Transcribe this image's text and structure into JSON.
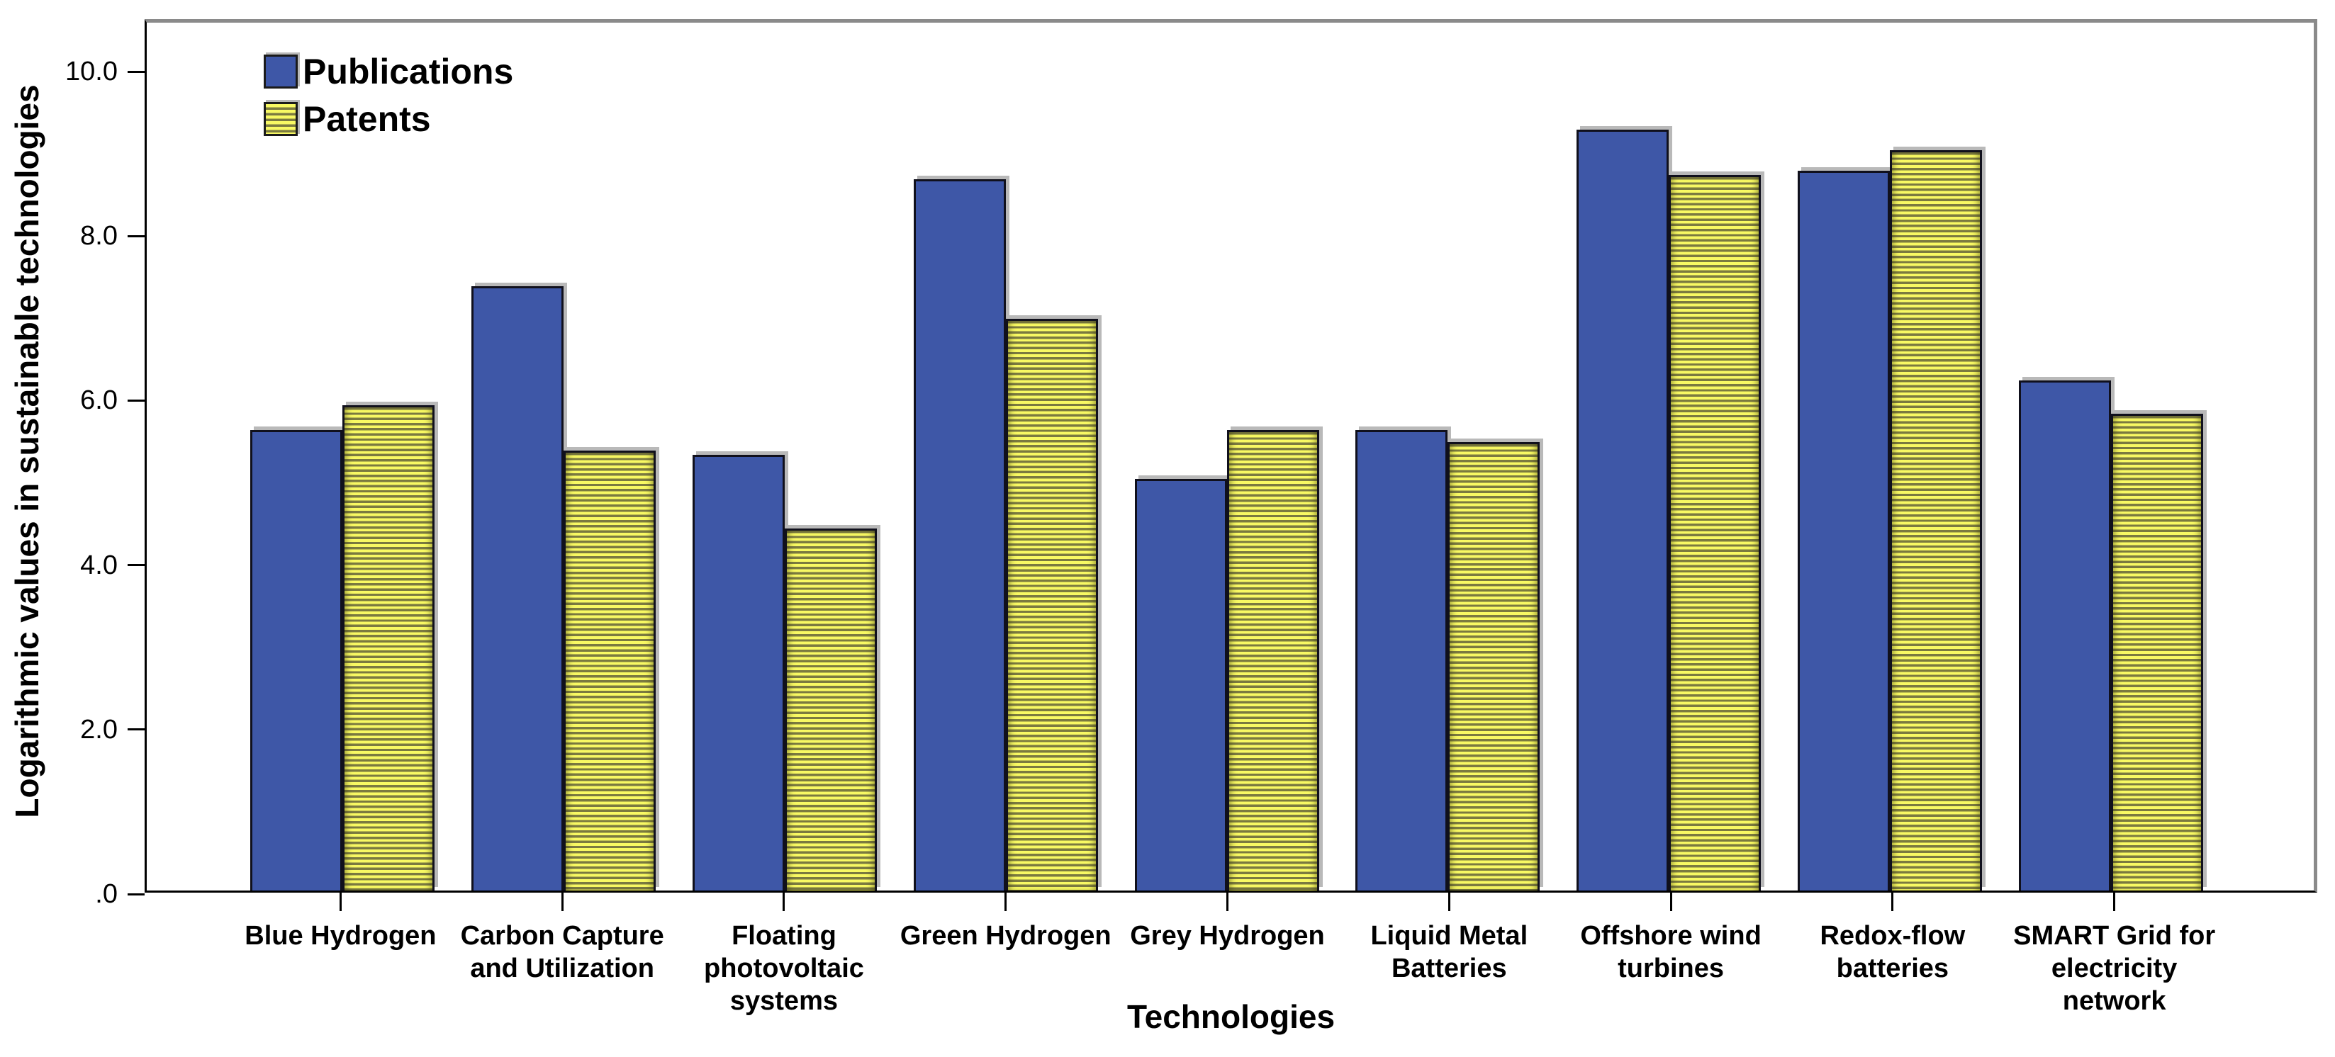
{
  "chart_data": {
    "type": "bar",
    "title": "",
    "xlabel": "Technologies",
    "ylabel": "Logarithmic values in sustainable technologies",
    "ylim": [
      0,
      10.6
    ],
    "grid": false,
    "legend_position": "top-left-inside",
    "yticks": [
      {
        "value": 0,
        "label": ".0"
      },
      {
        "value": 2,
        "label": "2.0"
      },
      {
        "value": 4,
        "label": "4.0"
      },
      {
        "value": 6,
        "label": "6.0"
      },
      {
        "value": 8,
        "label": "8.0"
      },
      {
        "value": 10,
        "label": "10.0"
      }
    ],
    "categories": [
      {
        "label": "Blue Hydrogen",
        "display": "Blue Hydrogen"
      },
      {
        "label": "Carbon Capture and Utilization",
        "display": "Carbon Capture\nand Utilization"
      },
      {
        "label": "Floating photovoltaic systems",
        "display": "Floating\nphotovoltaic\nsystems"
      },
      {
        "label": "Green Hydrogen",
        "display": "Green Hydrogen"
      },
      {
        "label": "Grey Hydrogen",
        "display": "Grey Hydrogen"
      },
      {
        "label": "Liquid Metal Batteries",
        "display": "Liquid Metal\nBatteries"
      },
      {
        "label": "Offshore wind turbines",
        "display": "Offshore wind\nturbines"
      },
      {
        "label": "Redox-flow batteries",
        "display": "Redox-flow\nbatteries"
      },
      {
        "label": "SMART Grid for electricity network",
        "display": "SMART Grid for\nelectricity network"
      }
    ],
    "series": [
      {
        "name": "Publications",
        "pattern": "solid",
        "color": "#3E57A7",
        "values": [
          5.6,
          7.35,
          5.3,
          8.65,
          5.0,
          5.6,
          9.25,
          8.75,
          6.2
        ]
      },
      {
        "name": "Patents",
        "pattern": "horizontal-stripes",
        "color": "#F8F963",
        "stripe_color": "#7B7A40",
        "values": [
          5.9,
          5.35,
          4.4,
          6.95,
          5.6,
          5.45,
          8.7,
          9.0,
          5.8
        ]
      }
    ]
  }
}
